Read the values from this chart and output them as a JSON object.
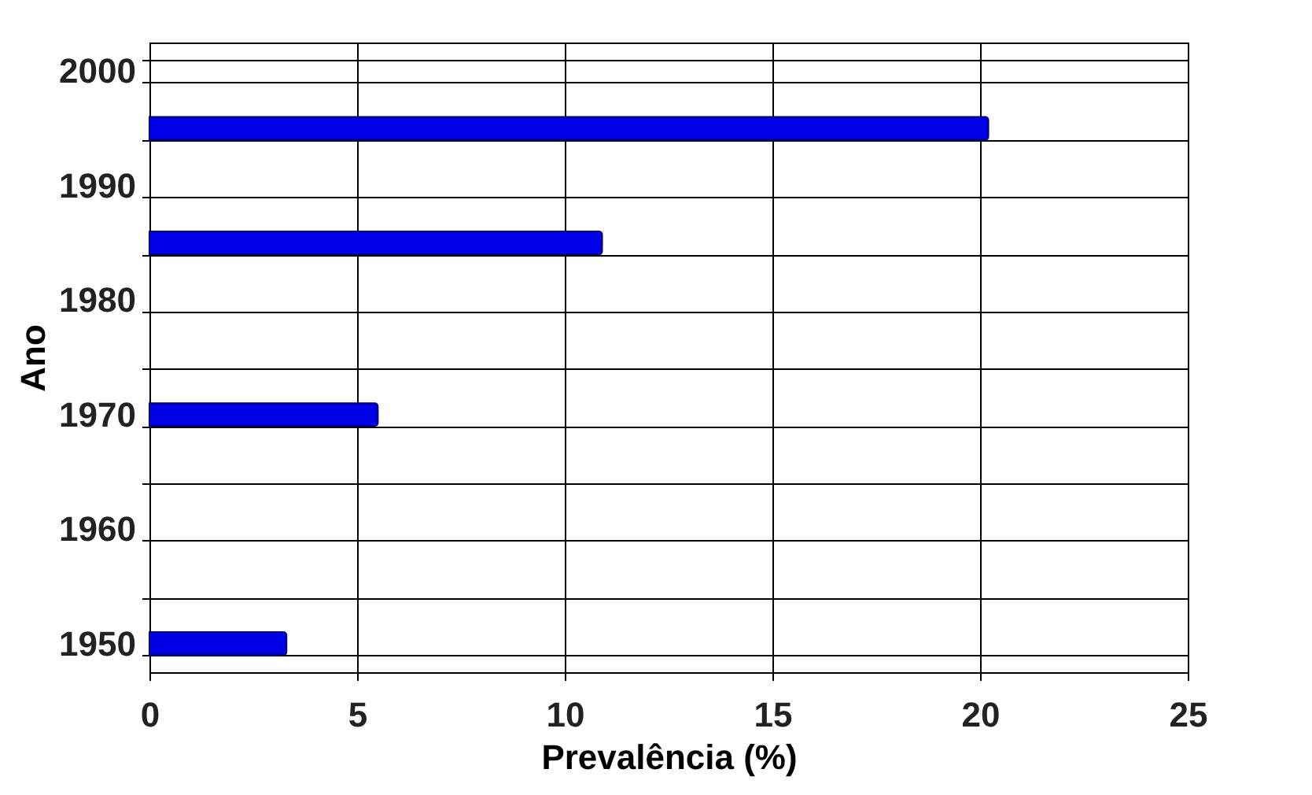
{
  "chart_data": {
    "type": "bar",
    "orientation": "horizontal",
    "xlabel": "Prevalência (%)",
    "ylabel": "Ano",
    "categories": [
      "2000",
      null,
      "1990",
      null,
      "1980",
      null,
      "1970",
      null,
      "1960",
      null,
      "1950"
    ],
    "values": [
      null,
      20.2,
      null,
      10.9,
      null,
      null,
      5.5,
      null,
      null,
      null,
      3.3
    ],
    "color": "#0000e6",
    "xlim": [
      0,
      25
    ],
    "xticks": [
      0,
      5,
      10,
      15,
      20,
      25
    ],
    "grid": true
  }
}
